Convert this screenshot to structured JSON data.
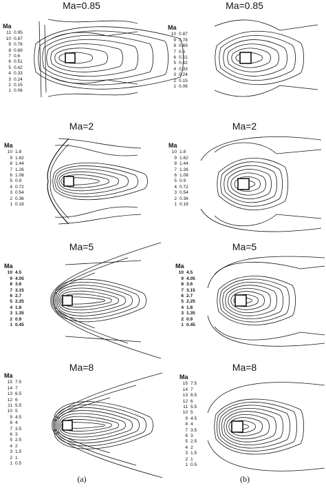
{
  "panels": [
    {
      "title": "Ma=0.85",
      "legend_header": "Ma",
      "levels": [
        [
          "11",
          "0.95"
        ],
        [
          "10",
          "0.87"
        ],
        [
          "9",
          "0.78"
        ],
        [
          "8",
          "0.69"
        ],
        [
          "7",
          "0.6"
        ],
        [
          "6",
          "0.51"
        ],
        [
          "5",
          "0.42"
        ],
        [
          "4",
          "0.33"
        ],
        [
          "3",
          "0.24"
        ],
        [
          "2",
          "0.15"
        ],
        [
          "1",
          "0.06"
        ]
      ]
    },
    {
      "title": "Ma=0.85",
      "legend_header": "Ma",
      "levels": [
        [
          "10",
          "0.87"
        ],
        [
          "9",
          "0.78"
        ],
        [
          "8",
          "0.69"
        ],
        [
          "7",
          "0.6"
        ],
        [
          "6",
          "0.51"
        ],
        [
          "5",
          "0.42"
        ],
        [
          "4",
          "0.33"
        ],
        [
          "3",
          "0.24"
        ],
        [
          "2",
          "0.15"
        ],
        [
          "1",
          "0.06"
        ]
      ]
    },
    {
      "title": "Ma=2",
      "legend_header": "Ma",
      "levels": [
        [
          "10",
          "1.8"
        ],
        [
          "9",
          "1.62"
        ],
        [
          "8",
          "1.44"
        ],
        [
          "7",
          "1.26"
        ],
        [
          "6",
          "1.08"
        ],
        [
          "5",
          "0.9"
        ],
        [
          "4",
          "0.72"
        ],
        [
          "3",
          "0.54"
        ],
        [
          "2",
          "0.36"
        ],
        [
          "1",
          "0.18"
        ]
      ]
    },
    {
      "title": "Ma=2",
      "legend_header": "Ma",
      "levels": [
        [
          "10",
          "1.8"
        ],
        [
          "9",
          "1.62"
        ],
        [
          "8",
          "1.44"
        ],
        [
          "7",
          "1.26"
        ],
        [
          "6",
          "1.08"
        ],
        [
          "5",
          "0.9"
        ],
        [
          "4",
          "0.72"
        ],
        [
          "3",
          "0.54"
        ],
        [
          "2",
          "0.36"
        ],
        [
          "1",
          "0.18"
        ]
      ]
    },
    {
      "title": "Ma=5",
      "legend_header": "Ma",
      "levels": [
        [
          "10",
          "4.5"
        ],
        [
          "9",
          "4.05"
        ],
        [
          "8",
          "3.6"
        ],
        [
          "7",
          "3.15"
        ],
        [
          "6",
          "2.7"
        ],
        [
          "5",
          "2.25"
        ],
        [
          "4",
          "1.8"
        ],
        [
          "3",
          "1.35"
        ],
        [
          "2",
          "0.9"
        ],
        [
          "1",
          "0.45"
        ]
      ]
    },
    {
      "title": "Ma=5",
      "legend_header": "Ma",
      "levels": [
        [
          "10",
          "4.5"
        ],
        [
          "9",
          "4.05"
        ],
        [
          "8",
          "3.6"
        ],
        [
          "7",
          "3.15"
        ],
        [
          "6",
          "2.7"
        ],
        [
          "5",
          "2.25"
        ],
        [
          "4",
          "1.8"
        ],
        [
          "3",
          "1.35"
        ],
        [
          "2",
          "0.9"
        ],
        [
          "1",
          "0.45"
        ]
      ]
    },
    {
      "title": "Ma=8",
      "legend_header": "Ma",
      "levels": [
        [
          "15",
          "7.5"
        ],
        [
          "14",
          "7"
        ],
        [
          "13",
          "6.5"
        ],
        [
          "12",
          "6"
        ],
        [
          "11",
          "5.5"
        ],
        [
          "10",
          "5"
        ],
        [
          "9",
          "4.5"
        ],
        [
          "8",
          "4"
        ],
        [
          "7",
          "3.5"
        ],
        [
          "6",
          "3"
        ],
        [
          "5",
          "2.5"
        ],
        [
          "4",
          "2"
        ],
        [
          "3",
          "1.5"
        ],
        [
          "2",
          "1"
        ],
        [
          "1",
          "0.5"
        ]
      ]
    },
    {
      "title": "Ma=8",
      "legend_header": "Ma",
      "levels": [
        [
          "15",
          "7.5"
        ],
        [
          "14",
          "7"
        ],
        [
          "13",
          "6.5"
        ],
        [
          "12",
          "6"
        ],
        [
          "11",
          "5.5"
        ],
        [
          "10",
          "5"
        ],
        [
          "9",
          "4.5"
        ],
        [
          "8",
          "4"
        ],
        [
          "7",
          "3.5"
        ],
        [
          "6",
          "3"
        ],
        [
          "5",
          "2.5"
        ],
        [
          "4",
          "2"
        ],
        [
          "3",
          "1.5"
        ],
        [
          "2",
          "1"
        ],
        [
          "1",
          "0.5"
        ]
      ]
    }
  ],
  "captions": {
    "left": "(a)",
    "right": "(b)"
  }
}
